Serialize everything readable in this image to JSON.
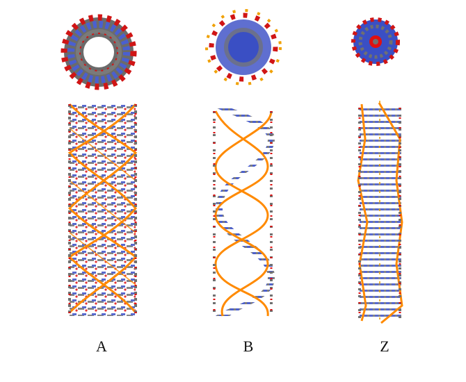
{
  "panels": [
    {
      "label": "A"
    },
    {
      "label": "B"
    },
    {
      "label": "Z"
    }
  ],
  "colors": {
    "backbone": "#ff8a00",
    "carbon": "#707070",
    "nitrogen": "#3a4fc4",
    "oxygen": "#e01010",
    "phosphorus": "#f0a000",
    "background": "#ffffff"
  }
}
